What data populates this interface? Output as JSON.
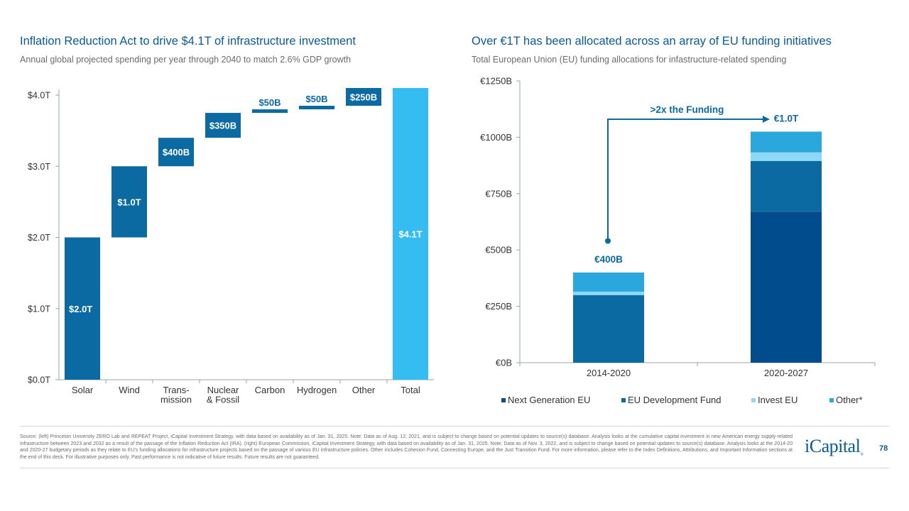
{
  "left": {
    "title": "Inflation Reduction Act to drive $4.1T of infrastructure investment",
    "subtitle": "Annual global projected spending per year through 2040 to match 2.6% GDP growth"
  },
  "right": {
    "title": "Over €1T has been allocated across an array of EU funding initiatives",
    "subtitle": "Total European Union (EU) funding allocations for infastructure-related spending"
  },
  "chart_data": [
    {
      "type": "bar",
      "subtype": "waterfall",
      "categories": [
        "Solar",
        "Wind",
        "Trans-\nmission",
        "Nuclear\n& Fossil",
        "Carbon",
        "Hydrogen",
        "Other",
        "Total"
      ],
      "starts": [
        0,
        2.0,
        3.0,
        3.4,
        3.75,
        3.8,
        3.85,
        0
      ],
      "values": [
        2.0,
        1.0,
        0.4,
        0.35,
        0.05,
        0.05,
        0.25,
        4.1
      ],
      "labels": [
        "$2.0T",
        "$1.0T",
        "$400B",
        "$350B",
        "$50B",
        "$50B",
        "$250B",
        "$4.1T"
      ],
      "ylim": [
        0,
        4.0
      ],
      "yticks": [
        0,
        1,
        2,
        3,
        4
      ],
      "ytick_labels": [
        "$0.0T",
        "$1.0T",
        "$2.0T",
        "$3.0T",
        "$4.0T"
      ],
      "colors": {
        "main": "#0a6aa1",
        "total": "#35bdf2"
      }
    },
    {
      "type": "bar",
      "subtype": "stacked",
      "categories": [
        "2014-2020",
        "2020-2027"
      ],
      "series": [
        {
          "name": "Next Generation EU",
          "values": [
            0,
            670
          ],
          "color": "#004c8c"
        },
        {
          "name": "EU Development Fund",
          "values": [
            300,
            225
          ],
          "color": "#0a6aa1"
        },
        {
          "name": "Invest EU",
          "values": [
            15,
            38
          ],
          "color": "#8fd8f5"
        },
        {
          "name": "Other*",
          "values": [
            85,
            92
          ],
          "color": "#2aa7dc"
        }
      ],
      "totals": [
        "€400B",
        "€1.0T"
      ],
      "ylim": [
        0,
        1250
      ],
      "yticks": [
        0,
        250,
        500,
        750,
        1000,
        1250
      ],
      "ytick_labels": [
        "€0B",
        "€250B",
        "€500B",
        "€750B",
        "€1000B",
        "€1250B"
      ],
      "annotation": ">2x the Funding"
    }
  ],
  "footer": {
    "source": "Source: (left) Princeton University ZERO Lab and REPEAT Project, iCapital Investment Strategy, with data based on availability as of Jan. 31, 2025. Note: Data as of Aug. 12, 2021, and is subject to change based on potential updates to source(s) database. Analysis looks at the cumulative capital investment in new American energy supply-related infrastructure between 2023 and 2032 as a result of the passage of the Inflation Reduction Act (IRA). (right) European Commission, iCapital Investment Strategy, with data based on availability as of Jan. 31, 2025. Note: Data as of Nov. 3, 2022, and is subject to change based on potential updates to source(s) database. Analysis looks at the 2014-20 and 2020-27 budgetary periods as they relate to EU's funding allocations for infrastructure projects based on the passage of various EU infrastructure policies. Other includes Cohesion Fund, Connecting Europe, and the Just Transition Fund. For more information, please refer to the Index Definitions, Attributions, and Important Information sections at the end of this deck. For illustrative purposes only. Past performance is not indicative of future results. Future results are not guaranteed.",
    "logo": "iCapital",
    "page_number": "78"
  }
}
